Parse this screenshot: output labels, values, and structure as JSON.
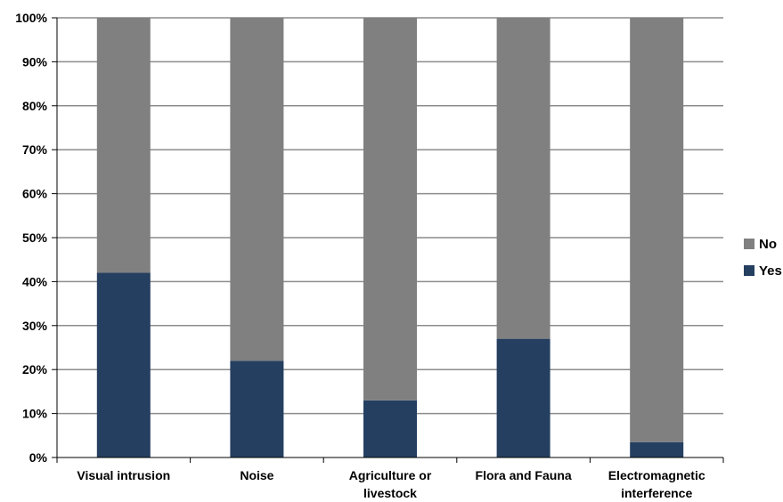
{
  "chart_data": {
    "type": "bar",
    "stacked": true,
    "categories": [
      [
        "Visual intrusion"
      ],
      [
        "Noise"
      ],
      [
        "Agriculture or",
        "livestock"
      ],
      [
        "Flora and Fauna"
      ],
      [
        "Electromagnetic",
        "interference"
      ]
    ],
    "series": [
      {
        "name": "Yes",
        "values": [
          42,
          22,
          13,
          27,
          3.5
        ],
        "color": "#253f61"
      },
      {
        "name": "No",
        "values": [
          58,
          78,
          87,
          73,
          96.5
        ],
        "color": "#808080"
      }
    ],
    "ylim": [
      0,
      100
    ],
    "y_ticks": [
      "0%",
      "10%",
      "20%",
      "30%",
      "40%",
      "50%",
      "60%",
      "70%",
      "80%",
      "90%",
      "100%"
    ],
    "grid": true,
    "legend": {
      "position": "right",
      "order": [
        "No",
        "Yes"
      ]
    }
  }
}
